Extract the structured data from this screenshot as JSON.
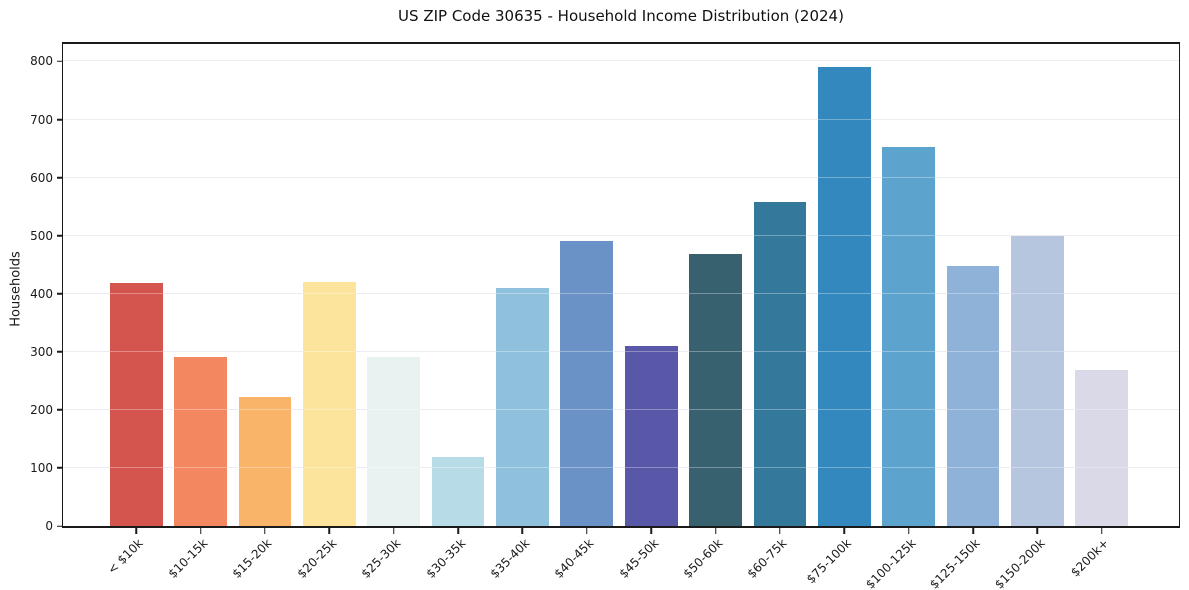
{
  "chart_data": {
    "type": "bar",
    "title": "US ZIP Code 30635 - Household Income Distribution (2024)",
    "xlabel": "",
    "ylabel": "Households",
    "categories": [
      "< $10k",
      "$10-15k",
      "$15-20k",
      "$20-25k",
      "$25-30k",
      "$30-35k",
      "$35-40k",
      "$40-45k",
      "$45-50k",
      "$50-60k",
      "$60-75k",
      "$75-100k",
      "$100-125k",
      "$125-150k",
      "$150-200k",
      "$200k+"
    ],
    "values": [
      418,
      291,
      222,
      421,
      291,
      119,
      410,
      490,
      310,
      468,
      558,
      790,
      652,
      448,
      500,
      268
    ],
    "bar_colors": [
      "#d4544e",
      "#f3875f",
      "#f9b469",
      "#fde49c",
      "#e8f2f1",
      "#b7dce8",
      "#90c1dc",
      "#6b92c6",
      "#5957a7",
      "#37616f",
      "#34789b",
      "#3389bd",
      "#5ca4cd",
      "#8fb3d8",
      "#b6c6df",
      "#d9d9e8"
    ],
    "yticks": [
      0,
      100,
      200,
      300,
      400,
      500,
      600,
      700,
      800
    ],
    "ylim": [
      0,
      830
    ],
    "grid": "horizontal",
    "legend": "none",
    "axis_color": "#1a1a1a",
    "grid_color": "#e4e4ea",
    "background": "#ffffff"
  }
}
